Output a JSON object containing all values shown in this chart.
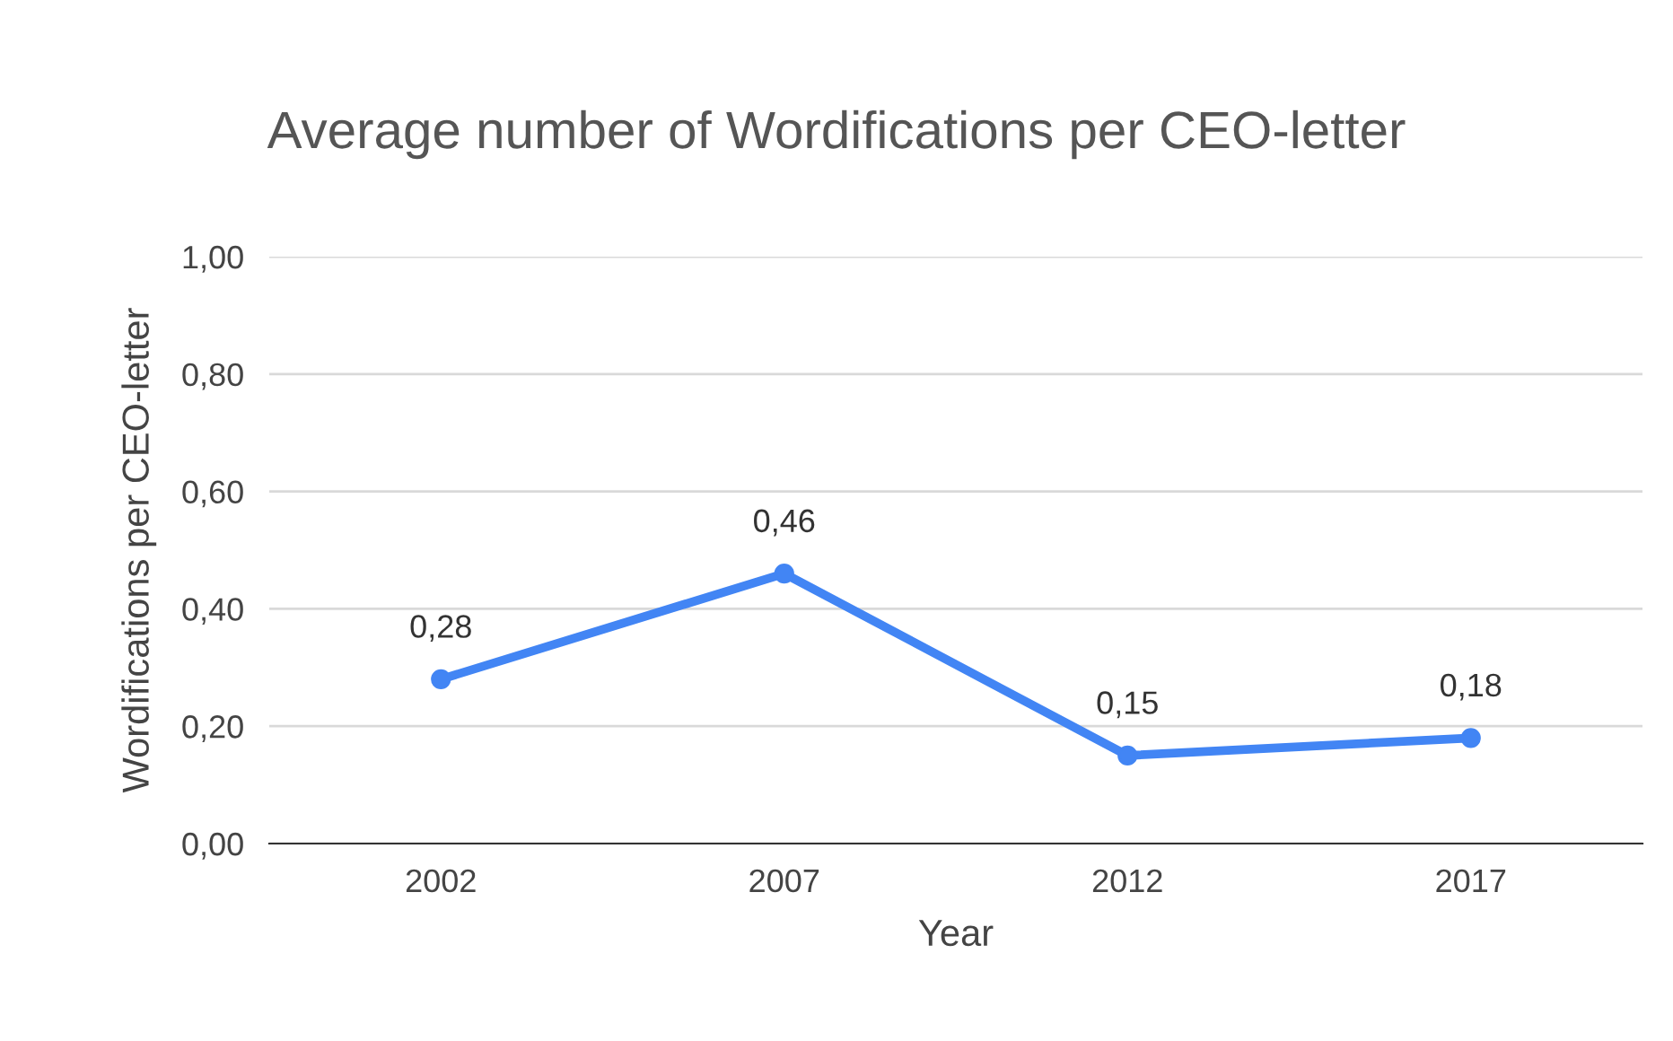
{
  "chart_data": {
    "type": "line",
    "title": "Average number of Wordifications per CEO-letter",
    "xlabel": "Year",
    "ylabel": "Wordifications per CEO-letter",
    "categories": [
      "2002",
      "2007",
      "2012",
      "2017"
    ],
    "series": [
      {
        "color": "#4285f4",
        "values": [
          0.28,
          0.46,
          0.15,
          0.18
        ],
        "value_labels": [
          "0,28",
          "0,46",
          "0,15",
          "0,18"
        ]
      }
    ],
    "ylim": [
      0,
      1
    ],
    "yticks": [
      {
        "value": 0,
        "label": "0,00"
      },
      {
        "value": 0.2,
        "label": "0,20"
      },
      {
        "value": 0.4,
        "label": "0,40"
      },
      {
        "value": 0.6,
        "label": "0,60"
      },
      {
        "value": 0.8,
        "label": "0,80"
      },
      {
        "value": 1,
        "label": "1,00"
      }
    ],
    "grid": "y",
    "marker": "circle",
    "line_style": "solid",
    "legend": false
  }
}
